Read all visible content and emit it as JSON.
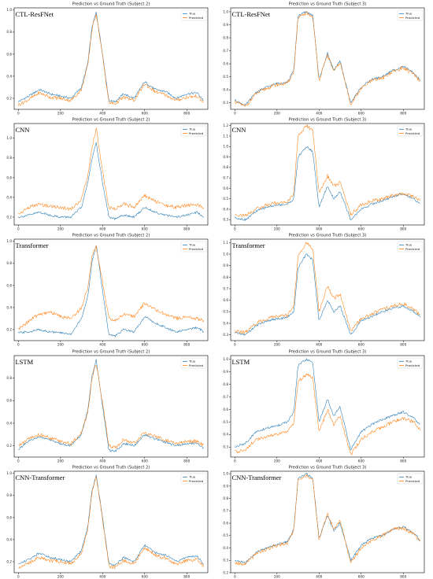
{
  "colors": {
    "true": "#1f77b4",
    "predicted": "#ff7f0e"
  },
  "legend": {
    "true": "True",
    "predicted": "Predicted"
  },
  "chart_data": [
    {
      "type": "line",
      "model": "CTL-ResFNet",
      "title": "Prediction vs Ground Truth (Subject 2)",
      "xticks": [
        0,
        200,
        400,
        600,
        800
      ],
      "yticks": [
        0.2,
        0.4,
        0.6,
        0.8,
        1.0
      ],
      "ylim": [
        0.1,
        1.02
      ],
      "xlim": [
        -20,
        900
      ],
      "x": [
        0,
        50,
        100,
        150,
        200,
        250,
        300,
        330,
        350,
        370,
        400,
        430,
        460,
        500,
        550,
        600,
        650,
        700,
        750,
        800,
        850,
        880
      ],
      "series": [
        {
          "name": "True",
          "values": [
            0.17,
            0.22,
            0.28,
            0.24,
            0.22,
            0.2,
            0.3,
            0.52,
            0.85,
            0.98,
            0.6,
            0.18,
            0.17,
            0.24,
            0.2,
            0.35,
            0.28,
            0.26,
            0.2,
            0.24,
            0.25,
            0.18
          ]
        },
        {
          "name": "Predicted",
          "values": [
            0.14,
            0.19,
            0.25,
            0.21,
            0.2,
            0.18,
            0.28,
            0.5,
            0.83,
            0.97,
            0.58,
            0.16,
            0.15,
            0.21,
            0.18,
            0.33,
            0.26,
            0.23,
            0.18,
            0.21,
            0.22,
            0.16
          ]
        }
      ]
    },
    {
      "type": "line",
      "model": "CTL-ResFNet",
      "title": "Prediction vs Ground Truth (Subject 3)",
      "xticks": [
        0,
        200,
        400,
        600,
        800
      ],
      "yticks": [
        0.3,
        0.4,
        0.5,
        0.6,
        0.7,
        0.8,
        0.9,
        1.0
      ],
      "ylim": [
        0.25,
        1.03
      ],
      "xlim": [
        -20,
        900
      ],
      "x": [
        0,
        50,
        100,
        150,
        200,
        250,
        280,
        300,
        340,
        370,
        400,
        440,
        470,
        500,
        550,
        600,
        650,
        700,
        750,
        800,
        850,
        880
      ],
      "series": [
        {
          "name": "True",
          "values": [
            0.32,
            0.28,
            0.38,
            0.42,
            0.45,
            0.46,
            0.55,
            0.97,
            1.0,
            0.97,
            0.48,
            0.68,
            0.55,
            0.62,
            0.3,
            0.42,
            0.48,
            0.5,
            0.55,
            0.58,
            0.53,
            0.47
          ]
        },
        {
          "name": "Predicted",
          "values": [
            0.31,
            0.27,
            0.37,
            0.41,
            0.44,
            0.45,
            0.54,
            0.95,
            0.99,
            0.96,
            0.47,
            0.67,
            0.54,
            0.61,
            0.29,
            0.41,
            0.47,
            0.49,
            0.54,
            0.57,
            0.52,
            0.46
          ]
        }
      ]
    },
    {
      "type": "line",
      "model": "CNN",
      "title": "Prediction vs Ground Truth (Subject 2)",
      "xticks": [
        0,
        200,
        400,
        600,
        800
      ],
      "yticks": [
        0.2,
        0.4,
        0.6,
        0.8,
        1.0
      ],
      "ylim": [
        0.12,
        1.15
      ],
      "xlim": [
        -20,
        900
      ],
      "x": [
        0,
        50,
        100,
        150,
        200,
        250,
        300,
        330,
        350,
        370,
        400,
        430,
        460,
        500,
        550,
        600,
        650,
        700,
        750,
        800,
        850,
        880
      ],
      "series": [
        {
          "name": "True",
          "values": [
            0.2,
            0.22,
            0.25,
            0.22,
            0.2,
            0.2,
            0.3,
            0.55,
            0.8,
            0.95,
            0.55,
            0.2,
            0.18,
            0.22,
            0.2,
            0.3,
            0.25,
            0.22,
            0.2,
            0.22,
            0.25,
            0.2
          ]
        },
        {
          "name": "Predicted",
          "values": [
            0.23,
            0.3,
            0.33,
            0.31,
            0.3,
            0.28,
            0.38,
            0.62,
            0.9,
            1.1,
            0.66,
            0.3,
            0.28,
            0.34,
            0.3,
            0.42,
            0.36,
            0.32,
            0.3,
            0.32,
            0.33,
            0.28
          ]
        }
      ]
    },
    {
      "type": "line",
      "model": "CNN",
      "title": "Prediction vs Ground Truth (Subject 3)",
      "xticks": [
        0,
        200,
        400,
        600,
        800
      ],
      "yticks": [
        0.3,
        0.4,
        0.5,
        0.6,
        0.7,
        0.8,
        0.9,
        1.0,
        1.1,
        1.2
      ],
      "ylim": [
        0.25,
        1.22
      ],
      "xlim": [
        -20,
        900
      ],
      "x": [
        0,
        50,
        100,
        150,
        200,
        250,
        280,
        300,
        340,
        370,
        400,
        440,
        470,
        500,
        550,
        600,
        650,
        700,
        750,
        800,
        850,
        880
      ],
      "series": [
        {
          "name": "True",
          "values": [
            0.32,
            0.3,
            0.38,
            0.42,
            0.44,
            0.45,
            0.5,
            0.9,
            1.0,
            0.95,
            0.42,
            0.62,
            0.5,
            0.57,
            0.3,
            0.4,
            0.45,
            0.48,
            0.52,
            0.55,
            0.5,
            0.45
          ]
        },
        {
          "name": "Predicted",
          "values": [
            0.35,
            0.34,
            0.4,
            0.44,
            0.46,
            0.47,
            0.55,
            1.1,
            1.2,
            1.15,
            0.55,
            0.72,
            0.62,
            0.66,
            0.35,
            0.44,
            0.48,
            0.5,
            0.53,
            0.55,
            0.52,
            0.48
          ]
        }
      ]
    },
    {
      "type": "line",
      "model": "Transformer",
      "title": "Prediction vs Ground Truth (Subject 2)",
      "xticks": [
        0,
        200,
        400,
        600,
        800
      ],
      "yticks": [
        0.2,
        0.4,
        0.6,
        0.8,
        1.0
      ],
      "ylim": [
        0.1,
        1.02
      ],
      "xlim": [
        -20,
        900
      ],
      "x": [
        0,
        50,
        100,
        150,
        200,
        250,
        300,
        330,
        350,
        370,
        400,
        430,
        460,
        500,
        550,
        600,
        650,
        700,
        750,
        800,
        850,
        880
      ],
      "series": [
        {
          "name": "True",
          "values": [
            0.17,
            0.18,
            0.2,
            0.18,
            0.17,
            0.16,
            0.3,
            0.5,
            0.82,
            0.97,
            0.55,
            0.15,
            0.14,
            0.2,
            0.18,
            0.32,
            0.26,
            0.22,
            0.18,
            0.2,
            0.22,
            0.18
          ]
        },
        {
          "name": "Predicted",
          "values": [
            0.2,
            0.28,
            0.34,
            0.36,
            0.32,
            0.3,
            0.4,
            0.58,
            0.88,
            0.95,
            0.63,
            0.3,
            0.28,
            0.34,
            0.32,
            0.44,
            0.38,
            0.34,
            0.3,
            0.32,
            0.3,
            0.28
          ]
        }
      ]
    },
    {
      "type": "line",
      "model": "Transformer",
      "title": "Prediction vs Ground Truth (Subject 3)",
      "xticks": [
        0,
        200,
        400,
        600,
        800
      ],
      "yticks": [
        0.3,
        0.4,
        0.5,
        0.6,
        0.7,
        0.8,
        0.9,
        1.0,
        1.1
      ],
      "ylim": [
        0.25,
        1.13
      ],
      "xlim": [
        -20,
        900
      ],
      "x": [
        0,
        50,
        100,
        150,
        200,
        250,
        280,
        300,
        340,
        370,
        400,
        440,
        470,
        500,
        550,
        600,
        650,
        700,
        750,
        800,
        850,
        880
      ],
      "series": [
        {
          "name": "True",
          "values": [
            0.32,
            0.3,
            0.38,
            0.42,
            0.44,
            0.45,
            0.5,
            0.88,
            1.0,
            0.95,
            0.42,
            0.6,
            0.5,
            0.55,
            0.3,
            0.42,
            0.46,
            0.5,
            0.53,
            0.55,
            0.5,
            0.46
          ]
        },
        {
          "name": "Predicted",
          "values": [
            0.33,
            0.32,
            0.4,
            0.44,
            0.46,
            0.47,
            0.55,
            0.98,
            1.1,
            1.05,
            0.5,
            0.72,
            0.62,
            0.65,
            0.33,
            0.44,
            0.48,
            0.52,
            0.55,
            0.57,
            0.52,
            0.48
          ]
        }
      ]
    },
    {
      "type": "line",
      "model": "LSTM",
      "title": "Prediction vs Ground Truth (Subject 2)",
      "xticks": [
        0,
        200,
        400,
        600,
        800
      ],
      "yticks": [
        0.2,
        0.4,
        0.6,
        0.8
      ],
      "ylim": [
        0.1,
        1.0
      ],
      "xlim": [
        -20,
        900
      ],
      "x": [
        0,
        50,
        100,
        150,
        200,
        250,
        300,
        330,
        350,
        370,
        400,
        430,
        460,
        500,
        550,
        600,
        650,
        700,
        750,
        800,
        850,
        880
      ],
      "series": [
        {
          "name": "True",
          "values": [
            0.17,
            0.24,
            0.28,
            0.25,
            0.22,
            0.2,
            0.3,
            0.52,
            0.82,
            0.96,
            0.55,
            0.16,
            0.15,
            0.22,
            0.2,
            0.3,
            0.26,
            0.23,
            0.2,
            0.22,
            0.22,
            0.18
          ]
        },
        {
          "name": "Predicted",
          "values": [
            0.2,
            0.26,
            0.3,
            0.27,
            0.24,
            0.22,
            0.32,
            0.5,
            0.8,
            0.93,
            0.58,
            0.2,
            0.18,
            0.25,
            0.22,
            0.32,
            0.28,
            0.25,
            0.22,
            0.24,
            0.24,
            0.2
          ]
        }
      ]
    },
    {
      "type": "line",
      "model": "LSTM",
      "title": "Prediction vs Ground Truth (Subject 3)",
      "xticks": [
        0,
        200,
        400,
        600,
        800
      ],
      "yticks": [
        0.3,
        0.4,
        0.5,
        0.6,
        0.7,
        0.8,
        0.9,
        1.0
      ],
      "ylim": [
        0.22,
        1.03
      ],
      "xlim": [
        -20,
        900
      ],
      "x": [
        0,
        50,
        100,
        150,
        200,
        250,
        280,
        300,
        340,
        370,
        400,
        440,
        470,
        500,
        550,
        600,
        650,
        700,
        750,
        800,
        850,
        880
      ],
      "series": [
        {
          "name": "True",
          "values": [
            0.3,
            0.33,
            0.42,
            0.45,
            0.47,
            0.5,
            0.58,
            0.95,
            1.0,
            0.97,
            0.5,
            0.68,
            0.55,
            0.62,
            0.28,
            0.42,
            0.48,
            0.52,
            0.55,
            0.58,
            0.53,
            0.48
          ]
        },
        {
          "name": "Predicted",
          "values": [
            0.26,
            0.28,
            0.36,
            0.38,
            0.4,
            0.42,
            0.5,
            0.82,
            0.88,
            0.85,
            0.42,
            0.6,
            0.48,
            0.55,
            0.24,
            0.36,
            0.42,
            0.46,
            0.5,
            0.53,
            0.5,
            0.44
          ]
        }
      ]
    },
    {
      "type": "line",
      "model": "CNN-Transformer",
      "title": "Prediction vs Ground Truth (Subject 2)",
      "xticks": [
        0,
        200,
        400,
        600,
        800
      ],
      "yticks": [
        0.2,
        0.4,
        0.6,
        0.8,
        1.0
      ],
      "ylim": [
        0.1,
        1.02
      ],
      "xlim": [
        -20,
        900
      ],
      "x": [
        0,
        50,
        100,
        150,
        200,
        250,
        300,
        330,
        350,
        370,
        400,
        430,
        460,
        500,
        550,
        600,
        650,
        700,
        750,
        800,
        850,
        880
      ],
      "series": [
        {
          "name": "True",
          "values": [
            0.18,
            0.22,
            0.28,
            0.24,
            0.22,
            0.2,
            0.3,
            0.52,
            0.85,
            0.98,
            0.6,
            0.18,
            0.17,
            0.24,
            0.2,
            0.35,
            0.28,
            0.26,
            0.2,
            0.24,
            0.25,
            0.18
          ]
        },
        {
          "name": "Predicted",
          "values": [
            0.15,
            0.19,
            0.24,
            0.21,
            0.2,
            0.18,
            0.28,
            0.5,
            0.83,
            0.97,
            0.58,
            0.16,
            0.15,
            0.21,
            0.18,
            0.33,
            0.26,
            0.23,
            0.18,
            0.21,
            0.22,
            0.16
          ]
        }
      ]
    },
    {
      "type": "line",
      "model": "CNN-Transformer",
      "title": "Prediction vs Ground Truth (Subject 3)",
      "xticks": [
        0,
        200,
        400,
        600,
        800
      ],
      "yticks": [
        0.2,
        0.3,
        0.4,
        0.5,
        0.6,
        0.7,
        0.8,
        0.9,
        1.0
      ],
      "ylim": [
        0.2,
        1.02
      ],
      "xlim": [
        -20,
        900
      ],
      "x": [
        0,
        50,
        100,
        150,
        200,
        250,
        280,
        300,
        340,
        370,
        400,
        440,
        470,
        500,
        550,
        600,
        650,
        700,
        750,
        800,
        850,
        880
      ],
      "series": [
        {
          "name": "True",
          "values": [
            0.3,
            0.28,
            0.36,
            0.4,
            0.43,
            0.45,
            0.55,
            0.96,
            1.0,
            0.96,
            0.48,
            0.66,
            0.54,
            0.6,
            0.3,
            0.42,
            0.48,
            0.5,
            0.55,
            0.57,
            0.52,
            0.46
          ]
        },
        {
          "name": "Predicted",
          "values": [
            0.28,
            0.27,
            0.35,
            0.39,
            0.42,
            0.44,
            0.54,
            0.95,
            0.99,
            0.95,
            0.46,
            0.68,
            0.55,
            0.62,
            0.28,
            0.4,
            0.46,
            0.5,
            0.55,
            0.56,
            0.51,
            0.45
          ]
        }
      ]
    }
  ]
}
